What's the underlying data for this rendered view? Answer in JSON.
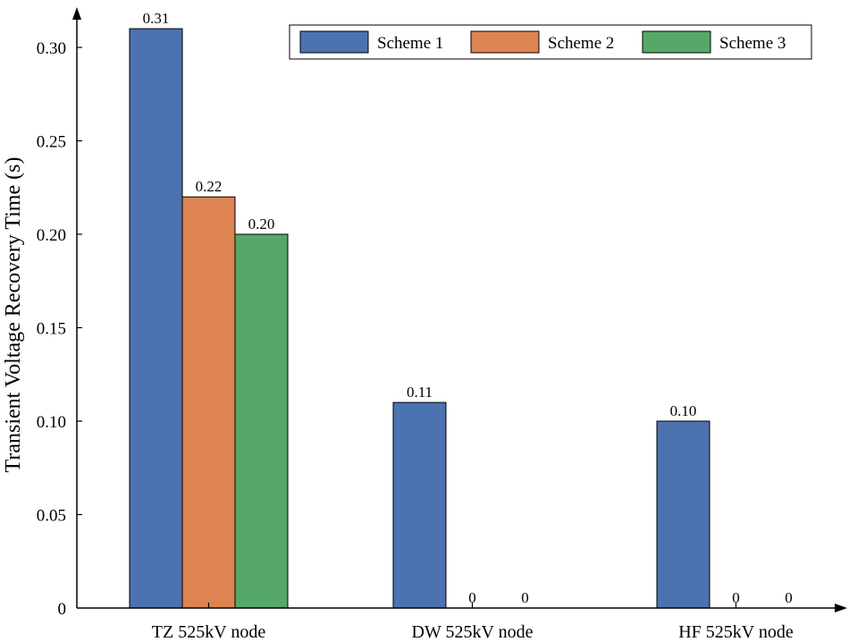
{
  "chart_data": {
    "type": "bar",
    "categories": [
      "TZ 525kV node",
      "DW 525kV node",
      "HF 525kV node"
    ],
    "series": [
      {
        "name": "Scheme 1",
        "values": [
          0.31,
          0.11,
          0.1
        ],
        "labels": [
          "0.31",
          "0.11",
          "0.10"
        ],
        "color": "#4c72b0"
      },
      {
        "name": "Scheme 2",
        "values": [
          0.22,
          0,
          0
        ],
        "labels": [
          "0.22",
          "0",
          "0"
        ],
        "color": "#dd8452"
      },
      {
        "name": "Scheme 3",
        "values": [
          0.2,
          0,
          0
        ],
        "labels": [
          "0.20",
          "0",
          "0"
        ],
        "color": "#55a868"
      }
    ],
    "ylabel": "Transient Voltage Recovery Time (s)",
    "xlabel": "",
    "ylim": [
      0,
      0.33
    ],
    "yticks": [
      0,
      0.05,
      0.1,
      0.15,
      0.2,
      0.25,
      0.3
    ],
    "ytick_labels": [
      "0",
      "0.05",
      "0.10",
      "0.15",
      "0.20",
      "0.25",
      "0.30"
    ],
    "grid": false,
    "legend_position": "top-right"
  }
}
